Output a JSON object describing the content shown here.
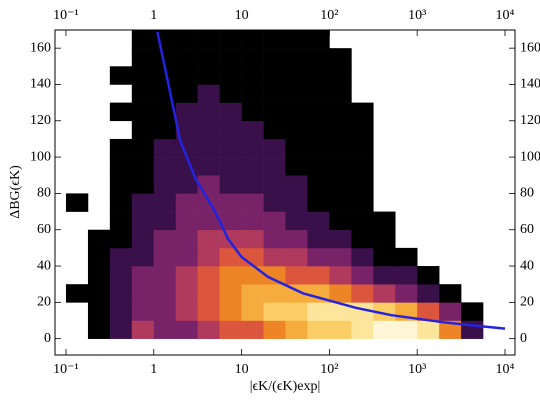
{
  "chart_data": {
    "type": "heatmap",
    "x_label": "|ϵK/(ϵK)exp|",
    "y_label": "ΔBG(ϵK)",
    "log_x": true,
    "xlim": [
      0.075,
      13000
    ],
    "ylim": [
      -9,
      170
    ],
    "xticks": [
      {
        "value": 0.1,
        "label": "10⁻¹"
      },
      1,
      10,
      {
        "value": 100,
        "label": "10²"
      },
      {
        "value": 1000,
        "label": "10³"
      },
      {
        "value": 10000,
        "label": "10⁴"
      }
    ],
    "yticks": [
      0,
      20,
      40,
      60,
      80,
      100,
      120,
      140,
      160
    ],
    "colormap": [
      "#000000",
      "#4a1560",
      "#9c2e6e",
      "#d8503f",
      "#f08a22",
      "#f9bd4a",
      "#fde08a",
      "#fff6d8"
    ],
    "xbins": [
      0.1,
      0.178,
      0.316,
      0.562,
      1,
      1.78,
      3.16,
      5.62,
      10,
      17.8,
      31.6,
      56.2,
      100,
      178,
      316,
      562,
      1000,
      1778,
      3162,
      5623,
      10000
    ],
    "ybins": [
      0,
      10,
      20,
      30,
      40,
      50,
      60,
      70,
      80,
      90,
      100,
      110,
      120,
      130,
      140,
      150,
      160,
      170
    ],
    "values": [
      [
        0,
        1,
        2,
        4,
        3,
        3,
        4,
        5,
        5,
        6,
        7,
        8,
        8,
        9,
        10,
        10,
        9,
        6,
        2,
        0
      ],
      [
        0,
        1,
        2,
        3,
        3,
        4,
        5,
        6,
        7,
        8,
        8,
        9,
        9,
        9,
        8,
        7,
        5,
        3,
        1,
        0
      ],
      [
        1,
        1,
        2,
        3,
        3,
        4,
        5,
        6,
        7,
        7,
        7,
        7,
        6,
        5,
        4,
        3,
        2,
        1,
        0,
        0
      ],
      [
        0,
        1,
        2,
        3,
        3,
        4,
        5,
        6,
        6,
        6,
        5,
        5,
        4,
        3,
        2,
        2,
        1,
        0,
        0,
        0
      ],
      [
        0,
        1,
        2,
        2,
        3,
        3,
        4,
        5,
        5,
        4,
        4,
        3,
        3,
        2,
        1,
        1,
        0,
        0,
        0,
        0
      ],
      [
        0,
        1,
        1,
        2,
        3,
        3,
        4,
        4,
        4,
        3,
        3,
        2,
        2,
        1,
        1,
        0,
        0,
        0,
        0,
        0
      ],
      [
        0,
        0,
        1,
        2,
        2,
        3,
        3,
        3,
        3,
        3,
        2,
        2,
        1,
        1,
        1,
        0,
        0,
        0,
        0,
        0
      ],
      [
        1,
        0,
        1,
        2,
        2,
        3,
        3,
        3,
        3,
        2,
        2,
        1,
        1,
        1,
        0,
        0,
        0,
        0,
        0,
        0
      ],
      [
        0,
        0,
        1,
        1,
        2,
        2,
        3,
        2,
        2,
        2,
        2,
        1,
        1,
        1,
        0,
        0,
        0,
        0,
        0,
        0
      ],
      [
        0,
        0,
        1,
        1,
        2,
        2,
        2,
        2,
        2,
        2,
        1,
        1,
        1,
        1,
        0,
        0,
        0,
        0,
        0,
        0
      ],
      [
        0,
        0,
        1,
        1,
        2,
        2,
        2,
        2,
        2,
        2,
        1,
        1,
        1,
        1,
        0,
        0,
        0,
        0,
        0,
        0
      ],
      [
        0,
        0,
        0,
        1,
        1,
        2,
        2,
        2,
        2,
        1,
        1,
        1,
        1,
        1,
        0,
        0,
        0,
        0,
        0,
        0
      ],
      [
        0,
        0,
        1,
        1,
        1,
        2,
        2,
        2,
        1,
        1,
        1,
        1,
        1,
        1,
        0,
        0,
        0,
        0,
        0,
        0
      ],
      [
        0,
        0,
        0,
        1,
        1,
        1,
        2,
        1,
        1,
        1,
        1,
        1,
        1,
        0,
        0,
        0,
        0,
        0,
        0,
        0
      ],
      [
        0,
        0,
        1,
        1,
        1,
        1,
        1,
        1,
        1,
        1,
        1,
        1,
        1,
        0,
        0,
        0,
        0,
        0,
        0,
        0
      ],
      [
        0,
        0,
        0,
        1,
        1,
        1,
        1,
        1,
        1,
        1,
        1,
        1,
        1,
        0,
        0,
        0,
        0,
        0,
        0,
        0
      ],
      [
        0,
        0,
        0,
        1,
        1,
        1,
        1,
        1,
        1,
        1,
        1,
        1,
        0,
        0,
        0,
        0,
        0,
        0,
        0,
        0
      ]
    ],
    "curve": {
      "color": "#2323e0",
      "x": [
        1.1,
        1.5,
        2,
        3,
        5,
        7,
        10,
        20,
        50,
        100,
        200,
        500,
        1000,
        2000,
        5000,
        10000
      ],
      "y": [
        169,
        138,
        109,
        88,
        70,
        55,
        45,
        34,
        25,
        21,
        17,
        13,
        11,
        9,
        7,
        5.5
      ]
    }
  }
}
